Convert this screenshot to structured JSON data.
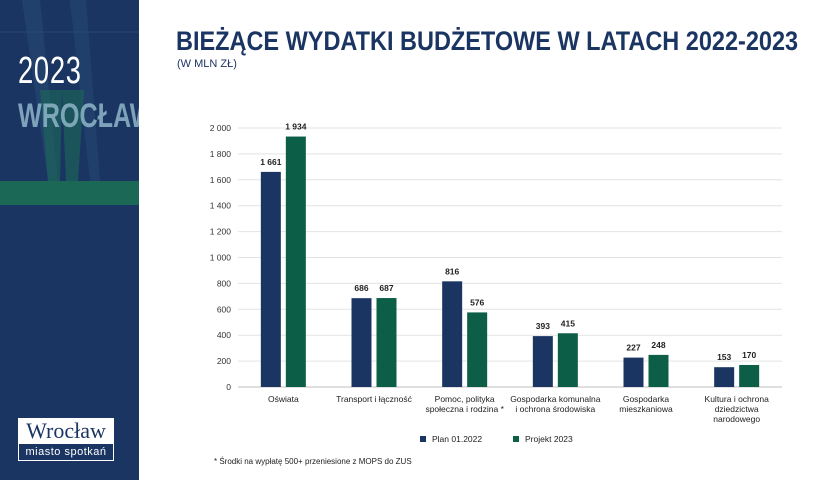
{
  "sidebar": {
    "year": "2023",
    "city": "WROCŁAW",
    "logo_name": "Wrocław",
    "logo_tagline": "miasto spotkań"
  },
  "header": {
    "title": "BIEŻĄCE WYDATKI BUDŻETOWE W LATACH 2022-2023",
    "subtitle": "(W MLN ZŁ)"
  },
  "colors": {
    "navy": "#1b3563",
    "green": "#0d5e46",
    "sidebar_bg": "#1b3563",
    "sidebar_green": "#1c6e55"
  },
  "chart_data": {
    "type": "bar",
    "categories": [
      [
        "Oświata"
      ],
      [
        "Transport i łączność"
      ],
      [
        "Pomoc, polityka",
        "społeczna i rodzina *"
      ],
      [
        "Gospodarka komunalna",
        "i ochrona środowiska"
      ],
      [
        "Gospodarka",
        "mieszkaniowa"
      ],
      [
        "Kultura i ochrona",
        "dziedzictwa",
        "narodowego"
      ]
    ],
    "series": [
      {
        "name": "Plan 01.2022",
        "color": "#1b3563",
        "values": [
          1661,
          686,
          816,
          393,
          227,
          153
        ],
        "labels": [
          "1 661",
          "686",
          "816",
          "393",
          "227",
          "153"
        ]
      },
      {
        "name": "Projekt 2023",
        "color": "#0d5e46",
        "values": [
          1934,
          687,
          576,
          415,
          248,
          170
        ],
        "labels": [
          "1 934",
          "687",
          "576",
          "415",
          "248",
          "170"
        ]
      }
    ],
    "ylim": [
      0,
      2000
    ],
    "yticks": [
      0,
      200,
      400,
      600,
      800,
      1000,
      1200,
      1400,
      1600,
      1800,
      2000
    ],
    "ytick_labels": [
      "0",
      "200",
      "400",
      "600",
      "800",
      "1 000",
      "1 200",
      "1 400",
      "1 600",
      "1 800",
      "2 000"
    ],
    "grid": true,
    "legend": "bottom-center",
    "footnote": "* Środki na wypłatę 500+ przeniesione z MOPS do ZUS"
  }
}
